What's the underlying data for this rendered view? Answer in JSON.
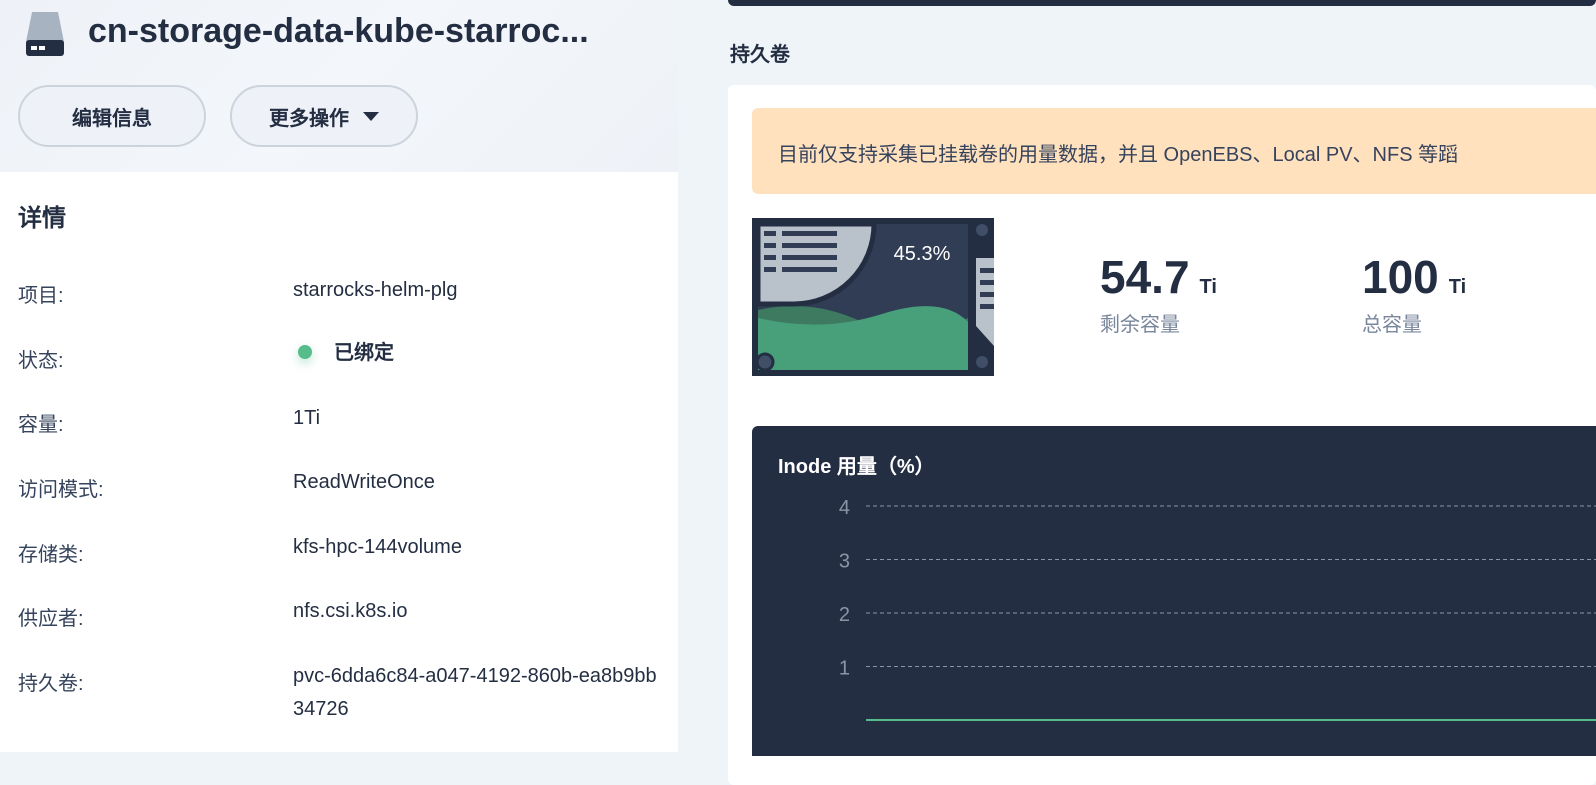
{
  "header": {
    "title": "cn-storage-data-kube-starroc...",
    "icon": "disk-icon",
    "edit_button": "编辑信息",
    "more_button": "更多操作"
  },
  "details": {
    "title": "详情",
    "rows": [
      {
        "label": "项目:",
        "value": "starrocks-helm-plg"
      },
      {
        "label": "状态:",
        "value": "已绑定"
      },
      {
        "label": "容量:",
        "value": "1Ti"
      },
      {
        "label": "访问模式:",
        "value": "ReadWriteOnce"
      },
      {
        "label": "存储类:",
        "value": "kfs-hpc-144volume"
      },
      {
        "label": "供应者:",
        "value": "nfs.csi.k8s.io"
      },
      {
        "label": "持久卷:",
        "value": "pvc-6dda6c84-a047-4192-860b-ea8b9bb34726"
      }
    ],
    "status_color": "#55bc8a"
  },
  "volume": {
    "title": "持久卷",
    "alert": "目前仅支持采集已挂载卷的用量数据，并且 OpenEBS、Local PV、NFS 等蹈",
    "usage_percent": "45.3%",
    "usage_fraction": 0.453,
    "remaining": {
      "value": "54.7",
      "unit": "Ti",
      "label": "剩余容量"
    },
    "total": {
      "value": "100",
      "unit": "Ti",
      "label": "总容量"
    }
  },
  "chart_data": {
    "type": "line",
    "title": "Inode 用量（%）",
    "y_ticks": [
      "4",
      "3",
      "2",
      "1"
    ],
    "ylim": [
      0,
      4
    ],
    "series": [
      {
        "values": [
          0,
          0
        ]
      }
    ],
    "grid": true,
    "line_color": "#55bc8a"
  }
}
